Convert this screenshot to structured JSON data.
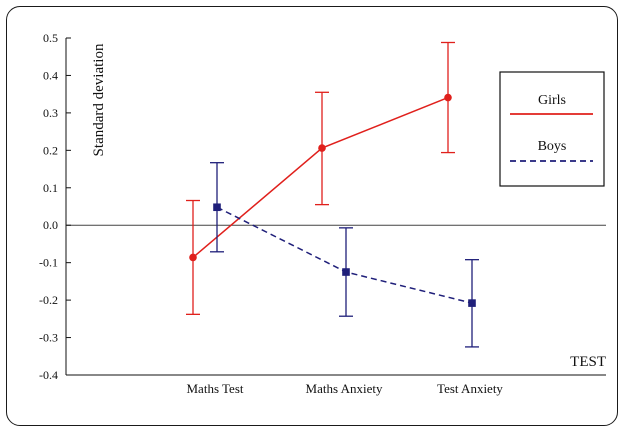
{
  "chart_data": {
    "type": "line",
    "ylabel": "Standard deviation",
    "xlabel": "TEST",
    "categories": [
      "Maths Test",
      "Maths Anxiety",
      "Test Anxiety"
    ],
    "ylim": [
      -0.4,
      0.5
    ],
    "yticks": [
      "0.5",
      "0.4",
      "0.3",
      "0.2",
      "0.1",
      "0.0",
      "-0.1",
      "-0.2",
      "-0.3",
      "-0.4"
    ],
    "reference_line_y": 0.0,
    "legend_position": "top-right",
    "series": [
      {
        "name": "Girls",
        "color": "#e0201c",
        "line_style": "solid",
        "marker": "circle",
        "values": [
          -0.086,
          0.206,
          0.341
        ],
        "error_low": [
          -0.238,
          0.055,
          0.194
        ],
        "error_high": [
          0.066,
          0.355,
          0.488
        ]
      },
      {
        "name": "Boys",
        "color": "#1f1f7a",
        "line_style": "dashed",
        "marker": "square",
        "values": [
          0.048,
          -0.125,
          -0.208
        ],
        "error_low": [
          -0.071,
          -0.243,
          -0.325
        ],
        "error_high": [
          0.167,
          -0.007,
          -0.092
        ]
      }
    ]
  }
}
